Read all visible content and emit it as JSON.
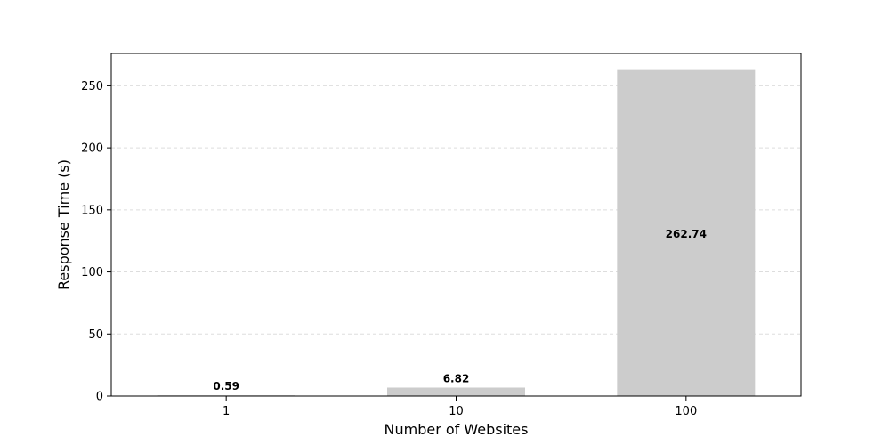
{
  "chart_data": {
    "type": "bar",
    "title": "",
    "xlabel": "Number of Websites",
    "ylabel": "Response Time (s)",
    "categories": [
      "1",
      "10",
      "100"
    ],
    "values": [
      0.59,
      6.82,
      262.74
    ],
    "data_labels": [
      "0.59",
      "6.82",
      "262.74"
    ],
    "ylim": [
      0,
      276.1
    ],
    "yticks": [
      0,
      50,
      100,
      150,
      200,
      250
    ],
    "ytick_labels": [
      "0",
      "50",
      "100",
      "150",
      "200",
      "250"
    ],
    "grid": {
      "y": true,
      "x": false,
      "style": "dashed"
    },
    "legend": "none",
    "colors": {
      "bar": "#cccccc",
      "grid": "#dddddd",
      "axes": "#000000"
    }
  }
}
